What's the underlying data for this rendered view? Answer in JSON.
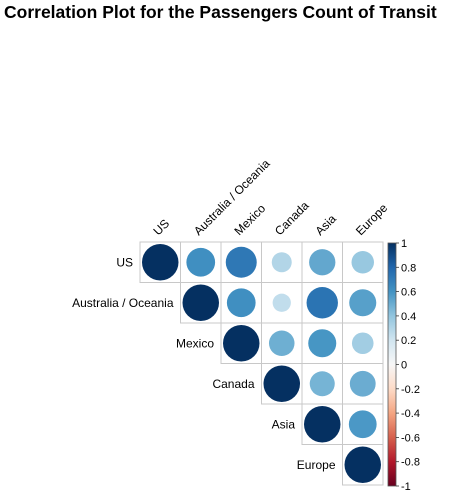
{
  "chart_data": {
    "type": "heatmap",
    "subtype": "correlation-upper-circle",
    "title": "Correlation Plot for the Passengers Count of Transit",
    "variables": [
      "US",
      "Australia / Oceania",
      "Mexico",
      "Canada",
      "Asia",
      "Europe"
    ],
    "matrix": [
      [
        1.0,
        0.62,
        0.72,
        0.3,
        0.52,
        0.38
      ],
      [
        0.62,
        1.0,
        0.62,
        0.25,
        0.74,
        0.55
      ],
      [
        0.72,
        0.62,
        1.0,
        0.49,
        0.59,
        0.35
      ],
      [
        0.3,
        0.25,
        0.49,
        1.0,
        0.47,
        0.5
      ],
      [
        0.52,
        0.74,
        0.59,
        0.47,
        1.0,
        0.58
      ],
      [
        0.38,
        0.55,
        0.35,
        0.5,
        0.58,
        1.0
      ]
    ],
    "color_scale": {
      "range": [
        -1,
        1
      ],
      "ticks": [
        "1",
        "0.8",
        "0.6",
        "0.4",
        "0.2",
        "0",
        "-0.2",
        "-0.4",
        "-0.6",
        "-0.8",
        "-1"
      ],
      "low_color": "#67001f",
      "mid_color": "#f7f7f7",
      "high_color": "#053061",
      "position": "right"
    },
    "grid": true,
    "label_rotation_deg": -45
  }
}
